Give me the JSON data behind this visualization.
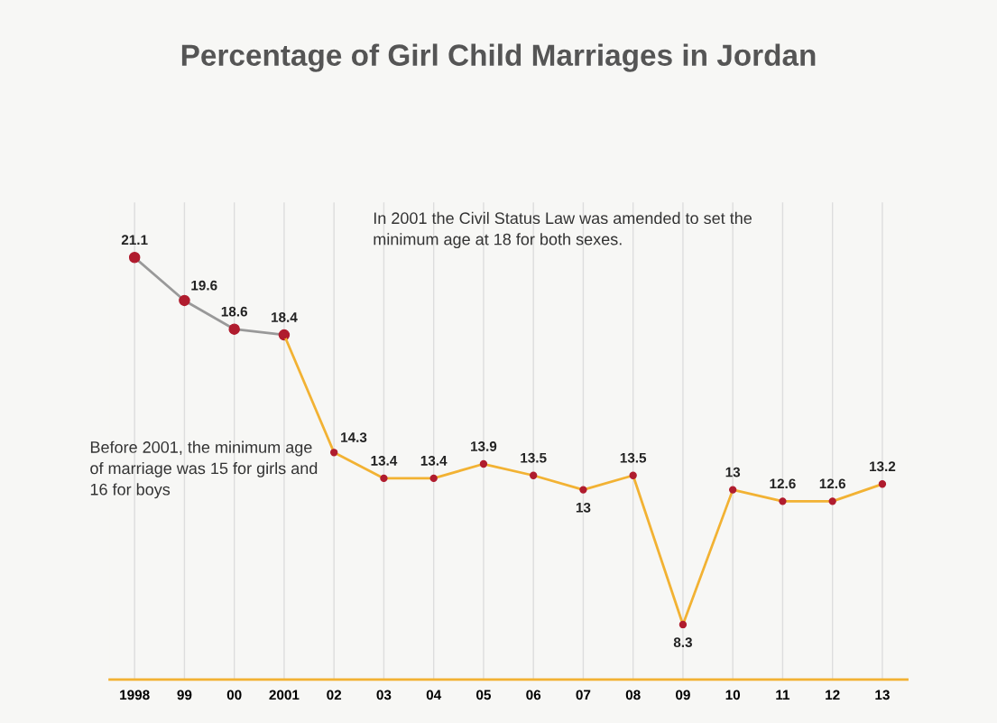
{
  "chart_data": {
    "type": "line",
    "title": "Percentage of Girl Child Marriages in Jordan",
    "categories": [
      "1998",
      "99",
      "00",
      "2001",
      "02",
      "03",
      "04",
      "05",
      "06",
      "07",
      "08",
      "09",
      "10",
      "11",
      "12",
      "13"
    ],
    "series": [
      {
        "color": "#999999",
        "values": [
          21.1,
          19.6,
          18.6,
          18.4,
          null,
          null,
          null,
          null,
          null,
          null,
          null,
          null,
          null,
          null,
          null,
          null
        ],
        "value_labels": [
          "21.1",
          "19.6",
          "18.6",
          "18.4",
          null,
          null,
          null,
          null,
          null,
          null,
          null,
          null,
          null,
          null,
          null,
          null
        ]
      },
      {
        "color": "#f2b233",
        "values": [
          null,
          null,
          null,
          18.4,
          14.3,
          13.4,
          13.4,
          13.9,
          13.5,
          13,
          13.5,
          8.3,
          13,
          12.6,
          12.6,
          13.2
        ],
        "value_labels": [
          null,
          null,
          null,
          null,
          "14.3",
          "13.4",
          "13.4",
          "13.9",
          "13.5",
          "13",
          "13.5",
          "8.3",
          "13",
          "12.6",
          "12.6",
          "13.2"
        ]
      }
    ],
    "annotations": [
      "In 2001 the Civil Status Law was amended to set the minimum age at 18 for both sexes.",
      "Before 2001, the minimum age of marriage was 15 for girls and 16 for boys"
    ],
    "marker": "circle",
    "line_style": "solid",
    "grid": "x",
    "legend": false,
    "tick_labels": "x"
  }
}
